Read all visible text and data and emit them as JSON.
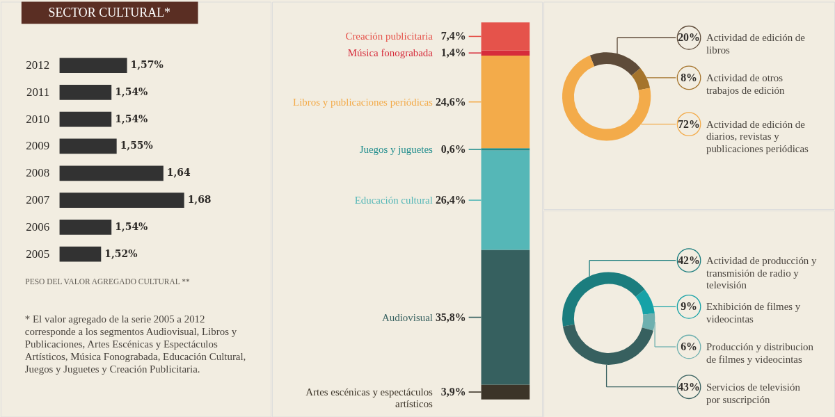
{
  "chart_data": [
    {
      "type": "bar",
      "orientation": "horizontal",
      "title": "SECTOR CULTURAL*",
      "categories": [
        "2012",
        "2011",
        "2010",
        "2009",
        "2008",
        "2007",
        "2006",
        "2005"
      ],
      "values": [
        1.57,
        1.54,
        1.54,
        1.55,
        1.64,
        1.68,
        1.54,
        1.52
      ],
      "value_labels": [
        "1,57%",
        "1,54%",
        "1,54%",
        "1,55%",
        "1,64",
        "1,68",
        "1,54%",
        "1,52%"
      ],
      "color": "#323232",
      "xlim": [
        1.44,
        1.68
      ],
      "xlabel": "PESO DEL VALOR AGREGADO CULTURAL **",
      "tick_labels": "y",
      "annotations": [
        "* El valor agregado de la serie 2005 a 2012 corresponde a los segmentos Audiovisual, Libros y Publicaciones, Artes Escénicas y Espectáculos Artísticos, Música Fonograbada, Educación Cultural, Juegos y Juguetes y Creación Publicitaria."
      ]
    },
    {
      "type": "bar",
      "stacked": true,
      "categories": [
        null
      ],
      "ylim": [
        0,
        100.1
      ],
      "tick_labels": false,
      "series": [
        {
          "name": "Artes escénicas y espectáculos artísticos",
          "color": "#3c3428",
          "values": [
            3.9
          ],
          "value_labels": [
            "3,9%"
          ]
        },
        {
          "name": "Audiovisual",
          "color": "#36605f",
          "values": [
            35.8
          ],
          "value_labels": [
            "35,8%"
          ]
        },
        {
          "name": "Educación cultural",
          "color": "#55b7b7",
          "values": [
            26.4
          ],
          "value_labels": [
            "26,4%"
          ]
        },
        {
          "name": "Juegos y juguetes",
          "color": "#1e8c8c",
          "values": [
            0.6
          ],
          "value_labels": [
            "0,6%"
          ]
        },
        {
          "name": "Libros y publicaciones periódicas",
          "color": "#f3ab4a",
          "values": [
            24.6
          ],
          "value_labels": [
            "24,6%"
          ]
        },
        {
          "name": "Música fonograbada",
          "color": "#d62c3b",
          "values": [
            1.4
          ],
          "value_labels": [
            "1,4%"
          ]
        },
        {
          "name": "Creación publicitaria",
          "color": "#e5534b",
          "values": [
            7.4
          ],
          "value_labels": [
            "7,4%"
          ]
        }
      ]
    },
    {
      "type": "donut",
      "categories": [
        "Actividad de edición de libros",
        "Actividad de otros trabajos de edición",
        "Actividad de edición de diarios, revistas y publicaciones periódicas"
      ],
      "values": [
        20,
        8,
        72
      ],
      "colors": [
        "#5e4b39",
        "#a5742c",
        "#f3ab4a"
      ],
      "value_labels": [
        "20%",
        "8%",
        "72%"
      ],
      "legend": "right"
    },
    {
      "type": "donut",
      "categories": [
        "Actividad de producción y transmisión de radio y televisión",
        "Exhibición de filmes y videocintas",
        "Producción y distribucion de filmes y videocintas",
        "Servicios de televisión por suscripción"
      ],
      "values": [
        42,
        9,
        6,
        43
      ],
      "colors": [
        "#1b7d7e",
        "#16a2a7",
        "#6eb0af",
        "#37605f"
      ],
      "value_labels": [
        "42%",
        "9%",
        "6%",
        "43%"
      ],
      "legend": "right"
    }
  ]
}
